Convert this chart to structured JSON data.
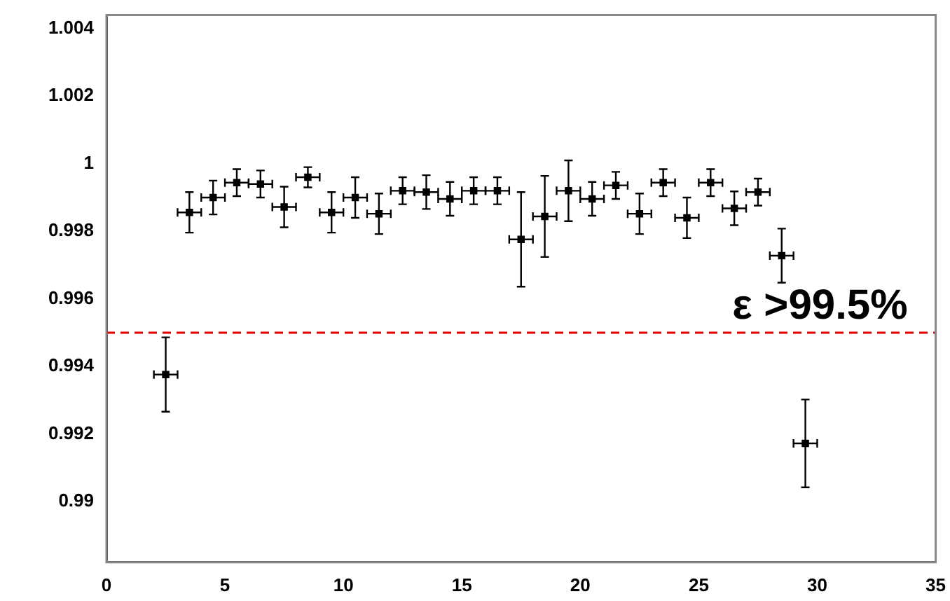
{
  "chart_data": {
    "type": "scatter",
    "marker": "square",
    "grid": false,
    "legend": false,
    "x": [
      2.5,
      3.5,
      4.5,
      5.5,
      6.5,
      7.5,
      8.5,
      9.5,
      10.5,
      11.5,
      12.5,
      13.5,
      14.5,
      15.5,
      16.5,
      17.5,
      18.5,
      19.5,
      20.5,
      21.5,
      22.5,
      23.5,
      24.5,
      25.5,
      26.5,
      27.5,
      28.5,
      29.5
    ],
    "series": [
      {
        "color": "#000000",
        "values": [
          0.99376,
          0.99856,
          0.999,
          0.99944,
          0.9994,
          0.99872,
          0.9996,
          0.99856,
          0.999,
          0.99852,
          0.9992,
          0.99916,
          0.99896,
          0.9992,
          0.9992,
          0.99776,
          0.99844,
          0.9992,
          0.99896,
          0.99936,
          0.99852,
          0.99944,
          0.9984,
          0.99944,
          0.99868,
          0.99916,
          0.99728,
          0.99172
        ],
        "errors": [
          0.0011,
          0.0006,
          0.0005,
          0.0004,
          0.0004,
          0.0006,
          0.0003,
          0.0006,
          0.0006,
          0.0006,
          0.0004,
          0.0005,
          0.0005,
          0.0004,
          0.0004,
          0.0014,
          0.0012,
          0.0009,
          0.0005,
          0.0004,
          0.0006,
          0.0004,
          0.0006,
          0.0004,
          0.0005,
          0.0004,
          0.0008,
          0.0013
        ],
        "xerrors": [
          0.5,
          0.5,
          0.5,
          0.5,
          0.5,
          0.5,
          0.5,
          0.5,
          0.5,
          0.5,
          0.5,
          0.5,
          0.5,
          0.5,
          0.5,
          0.5,
          0.5,
          0.5,
          0.5,
          0.5,
          0.5,
          0.5,
          0.5,
          0.5,
          0.5,
          0.5,
          0.5,
          0.5
        ]
      }
    ],
    "xlim": [
      0,
      35
    ],
    "xticks": [
      0,
      5,
      10,
      15,
      20,
      25,
      30,
      35
    ],
    "ylim": [
      0.9882,
      1.0044
    ],
    "yticks": [
      0.99,
      0.992,
      0.994,
      0.996,
      0.998,
      1,
      1.002,
      1.004
    ],
    "ref_lines": [
      {
        "axis": "y",
        "value": 0.995,
        "label": "ε >99.5%",
        "color": "#e00000",
        "line_style": "dashed"
      }
    ]
  }
}
